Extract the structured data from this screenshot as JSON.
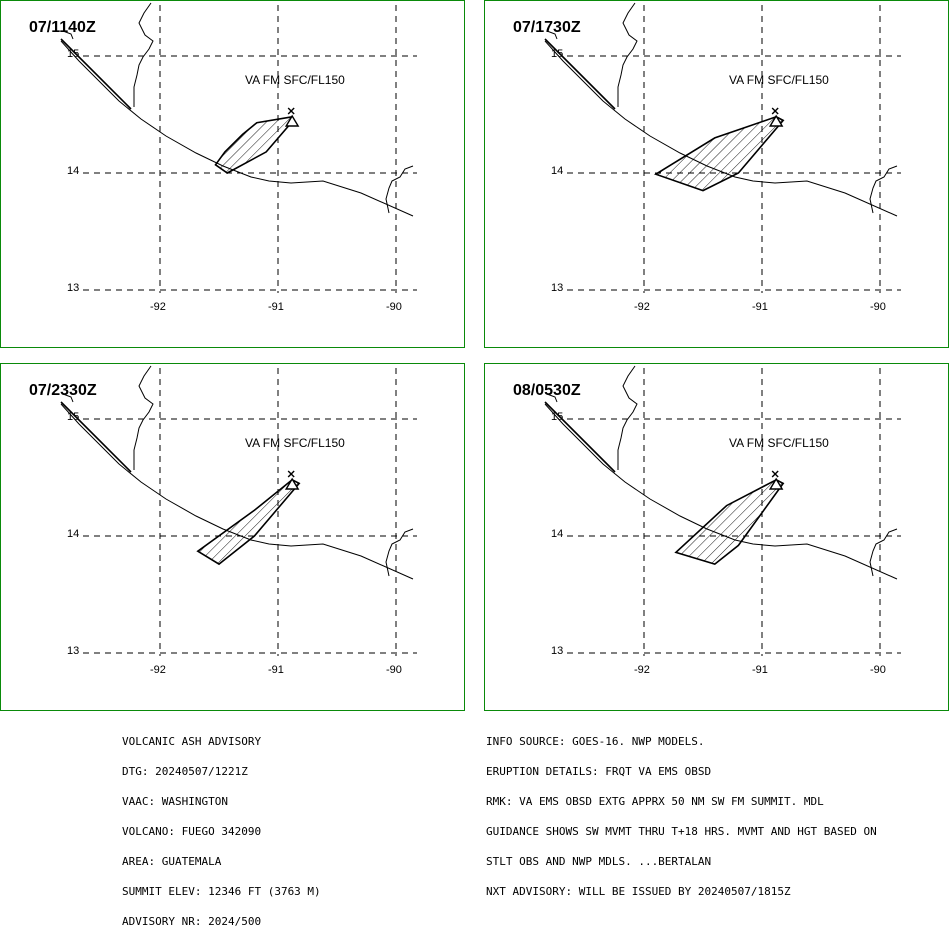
{
  "panels": [
    {
      "time": "07/1140Z",
      "layer": "VA FM SFC/FL150",
      "ash": [
        [
          -91.18,
          14.43
        ],
        [
          -91.3,
          14.33
        ],
        [
          -91.45,
          14.18
        ],
        [
          -91.53,
          14.07
        ],
        [
          -91.43,
          14.0
        ],
        [
          -91.1,
          14.18
        ],
        [
          -90.87,
          14.45
        ],
        [
          -90.88,
          14.48
        ]
      ]
    },
    {
      "time": "07/1730Z",
      "layer": "VA FM SFC/FL150",
      "ash": [
        [
          -90.88,
          14.48
        ],
        [
          -91.4,
          14.3
        ],
        [
          -91.9,
          13.99
        ],
        [
          -91.5,
          13.85
        ],
        [
          -91.2,
          14.0
        ],
        [
          -90.82,
          14.45
        ]
      ]
    },
    {
      "time": "07/2330Z",
      "layer": "VA FM SFC/FL150",
      "ash": [
        [
          -90.88,
          14.48
        ],
        [
          -91.2,
          14.22
        ],
        [
          -91.68,
          13.87
        ],
        [
          -91.5,
          13.76
        ],
        [
          -91.2,
          14.0
        ],
        [
          -90.82,
          14.45
        ]
      ]
    },
    {
      "time": "08/0530Z",
      "layer": "VA FM SFC/FL150",
      "ash": [
        [
          -90.88,
          14.48
        ],
        [
          -91.3,
          14.26
        ],
        [
          -91.73,
          13.86
        ],
        [
          -91.4,
          13.76
        ],
        [
          -91.2,
          13.92
        ],
        [
          -90.82,
          14.45
        ]
      ]
    }
  ],
  "axes": {
    "lat_ticks": [
      "15",
      "14",
      "13"
    ],
    "lon_ticks": [
      "-92",
      "-91",
      "-90"
    ],
    "lat_values": [
      15,
      14,
      13
    ],
    "lon_values": [
      -92,
      -91,
      -90
    ]
  },
  "volcano_marker": "x-icon",
  "summit": [
    -90.88,
    14.47
  ],
  "left_text": [
    "VOLCANIC ASH ADVISORY",
    "DTG: 20240507/1221Z",
    "VAAC: WASHINGTON",
    "VOLCANO: FUEGO 342090",
    "AREA: GUATEMALA",
    "SUMMIT ELEV: 12346 FT (3763 M)",
    "ADVISORY NR: 2024/500"
  ],
  "right_text": [
    "INFO SOURCE: GOES-16. NWP MODELS.",
    "ERUPTION DETAILS: FRQT VA EMS OBSD",
    "RMK: VA EMS OBSD EXTG APPRX 50 NM SW FM SUMMIT. MDL",
    "GUIDANCE SHOWS SW MVMT THRU T+18 HRS. MVMT AND HGT BASED ON",
    "STLT OBS AND NWP MDLS. ...BERTALAN",
    "NXT ADVISORY: WILL BE ISSUED BY 20240507/1815Z"
  ]
}
